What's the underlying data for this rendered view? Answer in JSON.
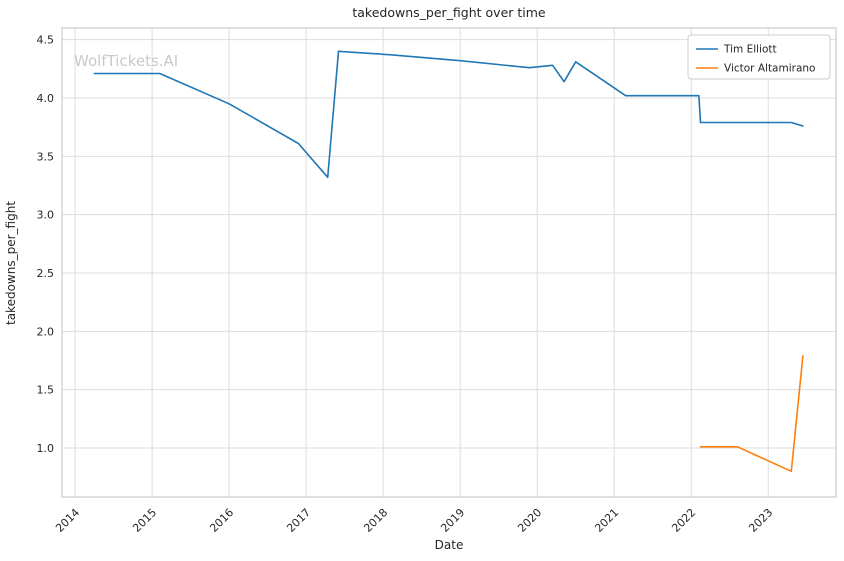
{
  "watermark": "WolfTickets.AI",
  "chart_data": {
    "type": "line",
    "title": "takedowns_per_fight over time",
    "xlabel": "Date",
    "ylabel": "takedowns_per_fight",
    "xlim": [
      2013.83,
      2023.88
    ],
    "ylim": [
      0.58,
      4.6
    ],
    "xticks": [
      2014,
      2015,
      2016,
      2017,
      2018,
      2019,
      2020,
      2021,
      2022,
      2023
    ],
    "yticks": [
      1.0,
      1.5,
      2.0,
      2.5,
      3.0,
      3.5,
      4.0,
      4.5
    ],
    "grid": true,
    "legend_position": "upper right",
    "colors": {
      "background": "#ffffff",
      "grid": "#dddddd",
      "spine": "#cccccc",
      "text": "#262626",
      "watermark": "#c9c9c9"
    },
    "series": [
      {
        "name": "Tim Elliott",
        "color": "#1f77b4",
        "points": [
          [
            2014.25,
            4.21
          ],
          [
            2015.1,
            4.21
          ],
          [
            2016.0,
            3.95
          ],
          [
            2016.9,
            3.61
          ],
          [
            2017.28,
            3.32
          ],
          [
            2017.42,
            4.4
          ],
          [
            2018.1,
            4.37
          ],
          [
            2019.0,
            4.32
          ],
          [
            2019.9,
            4.26
          ],
          [
            2020.2,
            4.28
          ],
          [
            2020.35,
            4.14
          ],
          [
            2020.5,
            4.31
          ],
          [
            2021.15,
            4.02
          ],
          [
            2022.1,
            4.02
          ],
          [
            2022.12,
            3.79
          ],
          [
            2023.3,
            3.79
          ],
          [
            2023.45,
            3.76
          ]
        ]
      },
      {
        "name": "Victor Altamirano",
        "color": "#ff7f0e",
        "points": [
          [
            2022.12,
            1.01
          ],
          [
            2022.6,
            1.01
          ],
          [
            2023.2,
            0.83
          ],
          [
            2023.3,
            0.8
          ],
          [
            2023.45,
            1.79
          ]
        ]
      }
    ]
  }
}
